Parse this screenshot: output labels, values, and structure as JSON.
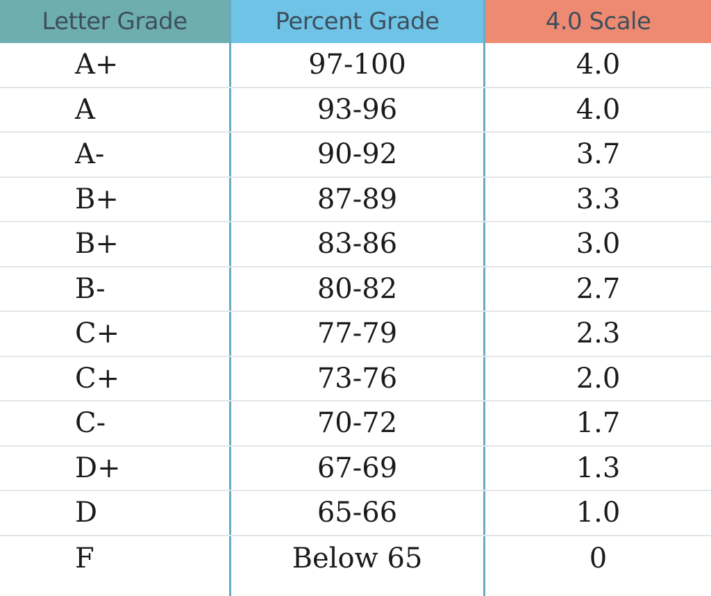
{
  "headers": {
    "letter": "Letter Grade",
    "percent": "Percent Grade",
    "scale": "4.0 Scale"
  },
  "colors": {
    "letter_header": "#6eaeb0",
    "percent_header": "#6ec3e6",
    "scale_header": "#ee8a72",
    "column_divider": "#6aa9c4"
  },
  "rows": [
    {
      "letter": "A+",
      "percent": "97-100",
      "scale": "4.0"
    },
    {
      "letter": "A",
      "percent": "93-96",
      "scale": "4.0"
    },
    {
      "letter": "A-",
      "percent": "90-92",
      "scale": "3.7"
    },
    {
      "letter": "B+",
      "percent": "87-89",
      "scale": "3.3"
    },
    {
      "letter": "B+",
      "percent": "83-86",
      "scale": "3.0"
    },
    {
      "letter": "B-",
      "percent": "80-82",
      "scale": "2.7"
    },
    {
      "letter": "C+",
      "percent": "77-79",
      "scale": "2.3"
    },
    {
      "letter": "C+",
      "percent": "73-76",
      "scale": "2.0"
    },
    {
      "letter": "C-",
      "percent": "70-72",
      "scale": "1.7"
    },
    {
      "letter": "D+",
      "percent": "67-69",
      "scale": "1.3"
    },
    {
      "letter": "D",
      "percent": "65-66",
      "scale": "1.0"
    },
    {
      "letter": "F",
      "percent": "Below 65",
      "scale": "0"
    }
  ]
}
